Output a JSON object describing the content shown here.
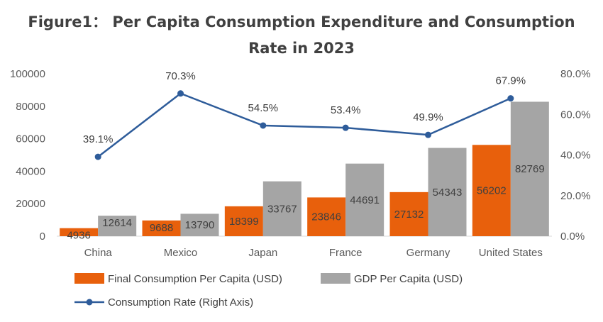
{
  "chart_data": {
    "type": "bar",
    "title_line1": "Figure1： Per Capita Consumption Expenditure and Consumption",
    "title_line2": "Rate in 2023",
    "categories": [
      "China",
      "Mexico",
      "Japan",
      "France",
      "Germany",
      "United States"
    ],
    "series": [
      {
        "name": "Final Consumption Per Capita (USD)",
        "type": "bar",
        "axis": "left",
        "color": "#E8600C",
        "values": [
          4936,
          9688,
          18399,
          23846,
          27132,
          56202
        ]
      },
      {
        "name": "GDP Per Capita (USD)",
        "type": "bar",
        "axis": "left",
        "color": "#A5A5A5",
        "values": [
          12614,
          13790,
          33767,
          44691,
          54343,
          82769
        ]
      },
      {
        "name": "Consumption Rate (Right Axis)",
        "type": "line",
        "axis": "right",
        "color": "#2E5C9A",
        "values": [
          39.1,
          70.3,
          54.5,
          53.4,
          49.9,
          67.9
        ],
        "labels": [
          "39.1%",
          "70.3%",
          "54.5%",
          "53.4%",
          "49.9%",
          "67.9%"
        ]
      }
    ],
    "left_axis": {
      "min": 0,
      "max": 100000,
      "step": 20000,
      "ticks": [
        "0",
        "20000",
        "40000",
        "60000",
        "80000",
        "100000"
      ]
    },
    "right_axis": {
      "min": 0,
      "max": 80,
      "step": 20,
      "unit": "%",
      "ticks": [
        "0.0%",
        "20.0%",
        "40.0%",
        "60.0%",
        "80.0%"
      ]
    },
    "grid": false,
    "legend_position": "bottom"
  }
}
